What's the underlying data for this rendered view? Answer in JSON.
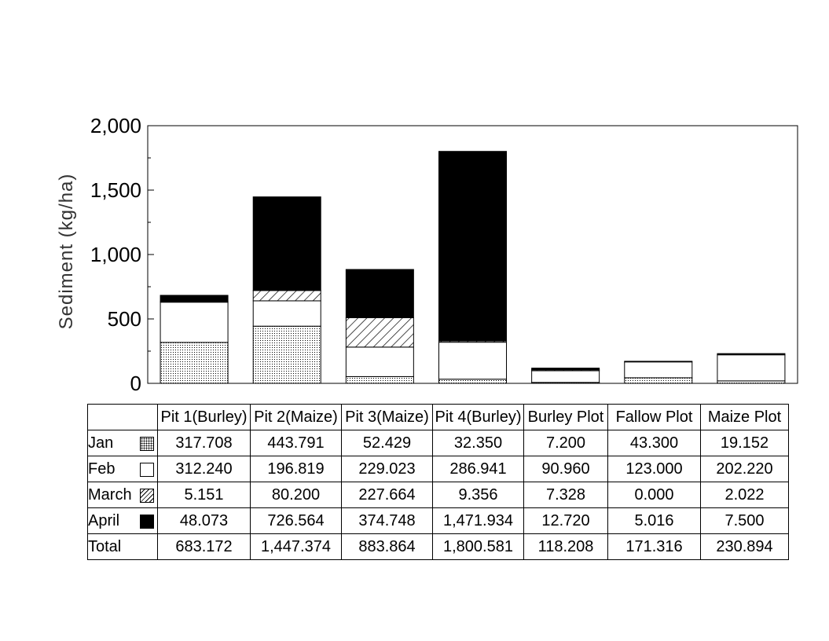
{
  "chart_data": {
    "type": "bar",
    "stacked": true,
    "ylabel": "Sediment (kg/ha)",
    "ylim": [
      0,
      2000
    ],
    "yticks": [
      "0",
      "500",
      "1,000",
      "1,500",
      "2,000"
    ],
    "yticks_values": [
      0,
      500,
      1000,
      1500,
      2000
    ],
    "categories": [
      "Pit 1(Burley)",
      "Pit 2(Maize)",
      "Pit 3(Maize)",
      "Pit 4(Burley)",
      "Burley Plot",
      "Fallow Plot",
      "Maize Plot"
    ],
    "series": [
      {
        "name": "Jan",
        "pattern": "dots",
        "values": [
          317.708,
          443.791,
          52.429,
          32.35,
          7.2,
          43.3,
          19.152
        ]
      },
      {
        "name": "Feb",
        "pattern": "white",
        "values": [
          312.24,
          196.819,
          229.023,
          286.941,
          90.96,
          123.0,
          202.22
        ]
      },
      {
        "name": "March",
        "pattern": "hatch",
        "values": [
          5.151,
          80.2,
          227.664,
          9.356,
          7.328,
          0.0,
          2.022
        ]
      },
      {
        "name": "April",
        "pattern": "black",
        "values": [
          48.073,
          726.564,
          374.748,
          1471.934,
          12.72,
          5.016,
          7.5
        ]
      }
    ],
    "totals": [
      683.172,
      1447.374,
      883.864,
      1800.581,
      118.208,
      171.316,
      230.894
    ],
    "grid": false,
    "legend": "data-table-below"
  },
  "table": {
    "total_label": "Total",
    "rows": [
      {
        "label": "Jan",
        "cells": [
          "317.708",
          "443.791",
          "52.429",
          "32.350",
          "7.200",
          "43.300",
          "19.152"
        ]
      },
      {
        "label": "Feb",
        "cells": [
          "312.240",
          "196.819",
          "229.023",
          "286.941",
          "90.960",
          "123.000",
          "202.220"
        ]
      },
      {
        "label": "March",
        "cells": [
          "5.151",
          "80.200",
          "227.664",
          "9.356",
          "7.328",
          "0.000",
          "2.022"
        ]
      },
      {
        "label": "April",
        "cells": [
          "48.073",
          "726.564",
          "374.748",
          "1,471.934",
          "12.720",
          "5.016",
          "7.500"
        ]
      }
    ],
    "total_cells": [
      "683.172",
      "1,447.374",
      "883.864",
      "1,800.581",
      "118.208",
      "171.316",
      "230.894"
    ]
  }
}
